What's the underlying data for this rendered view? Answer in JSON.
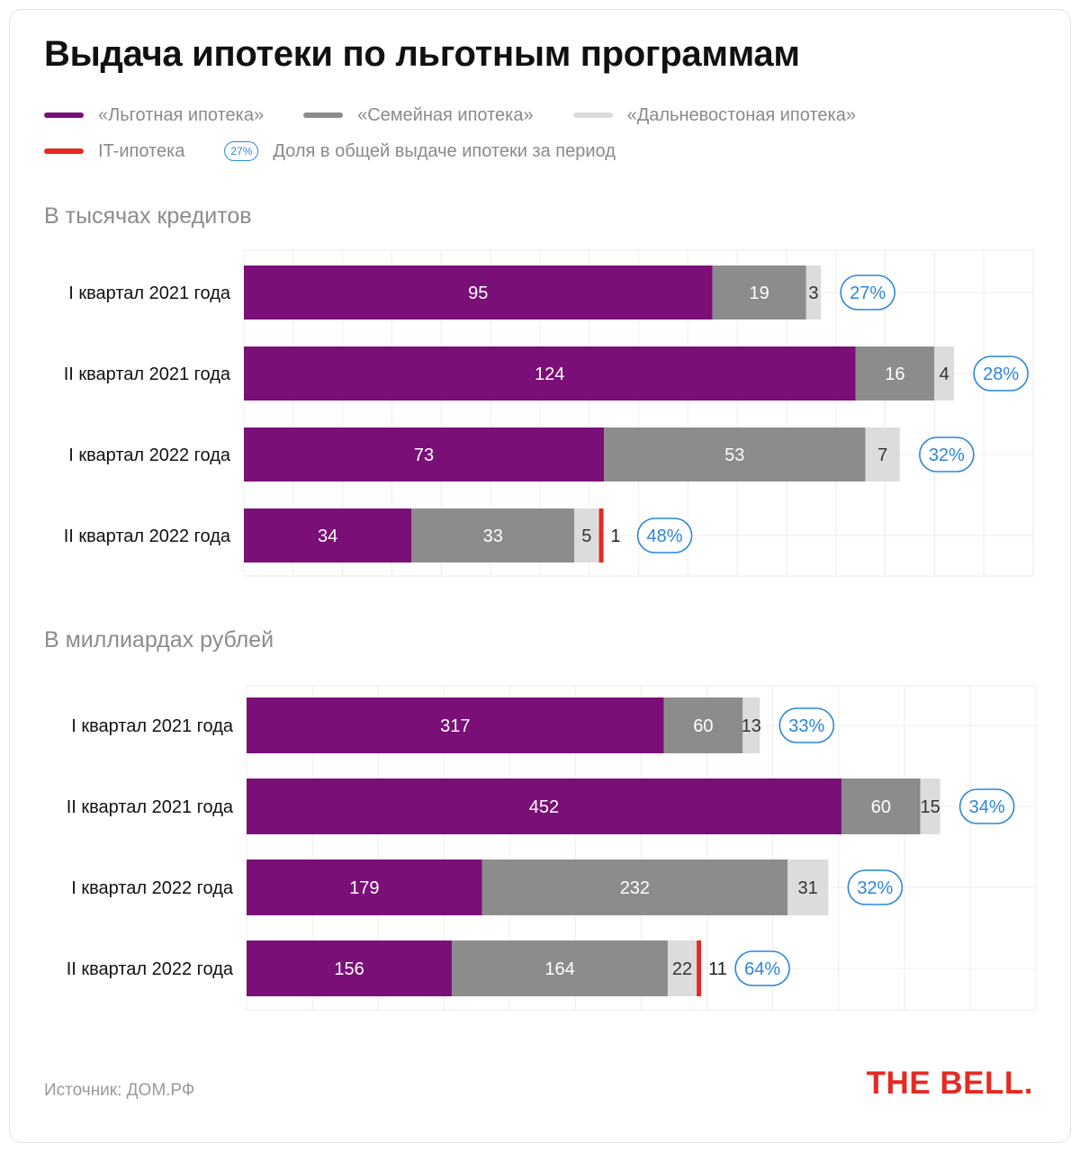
{
  "title": "Выдача ипотеки по льготным программам",
  "legend": {
    "items": [
      {
        "label": "«Льготная ипотека»",
        "color": "#7b0f78"
      },
      {
        "label": "«Семейная ипотека»",
        "color": "#8c8c8c"
      },
      {
        "label": "«Дальневостоная ипотека»",
        "color": "#dcdcdc"
      },
      {
        "label": "IT-ипотека",
        "color": "#e52a22"
      }
    ],
    "share_chip": "27%",
    "share_label": "Доля в общей выдаче ипотеки за период"
  },
  "chart_data": [
    {
      "type": "bar",
      "orientation": "horizontal",
      "stacked": true,
      "title": "В тысячах кредитов",
      "categories": [
        "I квартал 2021 года",
        "II квартал 2021 года",
        "I квартал 2022 года",
        "II квартал 2022 года"
      ],
      "series": [
        {
          "name": "«Льготная ипотека»",
          "color": "#7b0f78",
          "values": [
            95,
            124,
            73,
            34
          ]
        },
        {
          "name": "«Семейная ипотека»",
          "color": "#8c8c8c",
          "values": [
            19,
            16,
            53,
            33
          ]
        },
        {
          "name": "«Дальневостоная ипотека»",
          "color": "#dcdcdc",
          "values": [
            3,
            4,
            7,
            5
          ]
        },
        {
          "name": "IT-ипотека",
          "color": "#e52a22",
          "values": [
            null,
            null,
            null,
            1
          ]
        }
      ],
      "share": [
        "27%",
        "28%",
        "32%",
        "48%"
      ],
      "xlim": [
        0,
        160
      ],
      "grid": true
    },
    {
      "type": "bar",
      "orientation": "horizontal",
      "stacked": true,
      "title": "В миллиардах рублей",
      "categories": [
        "I квартал 2021 года",
        "II квартал 2021 года",
        "I квартал 2022 года",
        "II квартал 2022 года"
      ],
      "series": [
        {
          "name": "«Льготная ипотека»",
          "color": "#7b0f78",
          "values": [
            317,
            452,
            179,
            156
          ]
        },
        {
          "name": "«Семейная ипотека»",
          "color": "#8c8c8c",
          "values": [
            60,
            60,
            232,
            164
          ]
        },
        {
          "name": "«Дальневостоная ипотека»",
          "color": "#dcdcdc",
          "values": [
            13,
            15,
            31,
            22
          ]
        },
        {
          "name": "IT-ипотека",
          "color": "#e52a22",
          "values": [
            null,
            null,
            null,
            11
          ]
        }
      ],
      "share": [
        "33%",
        "34%",
        "32%",
        "64%"
      ],
      "xlim": [
        0,
        600
      ],
      "grid": true
    }
  ],
  "source": "Источник: ДОМ.РФ",
  "logo": "THE BELL."
}
